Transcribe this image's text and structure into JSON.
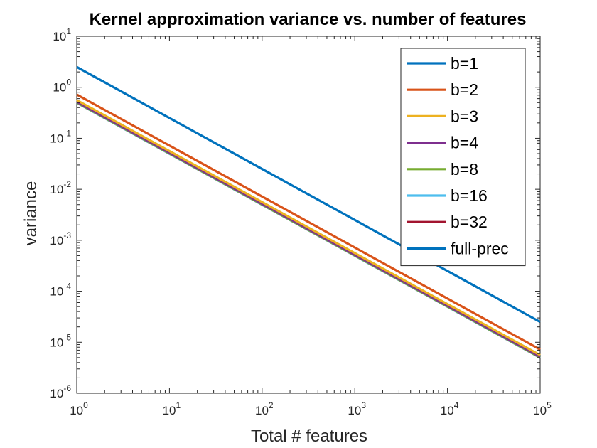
{
  "chart_data": {
    "type": "line",
    "title": "Kernel approximation variance vs. number of features",
    "xlabel": "Total # features",
    "ylabel": "variance",
    "xscale": "log",
    "yscale": "log",
    "xlim": [
      1,
      100000
    ],
    "ylim": [
      1e-06,
      10
    ],
    "grid": false,
    "legend_position": "top-right",
    "x_ticks": [
      {
        "value": 1,
        "base": "10",
        "exp": "0"
      },
      {
        "value": 10,
        "base": "10",
        "exp": "1"
      },
      {
        "value": 100,
        "base": "10",
        "exp": "2"
      },
      {
        "value": 1000,
        "base": "10",
        "exp": "3"
      },
      {
        "value": 10000,
        "base": "10",
        "exp": "4"
      },
      {
        "value": 100000,
        "base": "10",
        "exp": "5"
      }
    ],
    "y_ticks": [
      {
        "value": 1e-06,
        "base": "10",
        "exp": "-6"
      },
      {
        "value": 1e-05,
        "base": "10",
        "exp": "-5"
      },
      {
        "value": 0.0001,
        "base": "10",
        "exp": "-4"
      },
      {
        "value": 0.001,
        "base": "10",
        "exp": "-3"
      },
      {
        "value": 0.01,
        "base": "10",
        "exp": "-2"
      },
      {
        "value": 0.1,
        "base": "10",
        "exp": "-1"
      },
      {
        "value": 1,
        "base": "10",
        "exp": "0"
      },
      {
        "value": 10,
        "base": "10",
        "exp": "1"
      }
    ],
    "x": [
      1,
      100000
    ],
    "series": [
      {
        "name": "b=1",
        "color": "#0072BD",
        "values": [
          2.5,
          2.5e-05
        ]
      },
      {
        "name": "b=2",
        "color": "#D95319",
        "values": [
          0.72,
          7.2e-06
        ]
      },
      {
        "name": "b=3",
        "color": "#EDB120",
        "values": [
          0.56,
          5.6e-06
        ]
      },
      {
        "name": "b=4",
        "color": "#7E2F8E",
        "values": [
          0.52,
          5.2e-06
        ]
      },
      {
        "name": "b=8",
        "color": "#77AC30",
        "values": [
          0.505,
          5.05e-06
        ]
      },
      {
        "name": "b=16",
        "color": "#4DBEEE",
        "values": [
          0.5,
          5e-06
        ]
      },
      {
        "name": "b=32",
        "color": "#A2142F",
        "values": [
          0.5,
          5e-06
        ]
      },
      {
        "name": "full-prec",
        "color": "#0072BD",
        "values": [
          0.5,
          5e-06
        ]
      }
    ]
  }
}
